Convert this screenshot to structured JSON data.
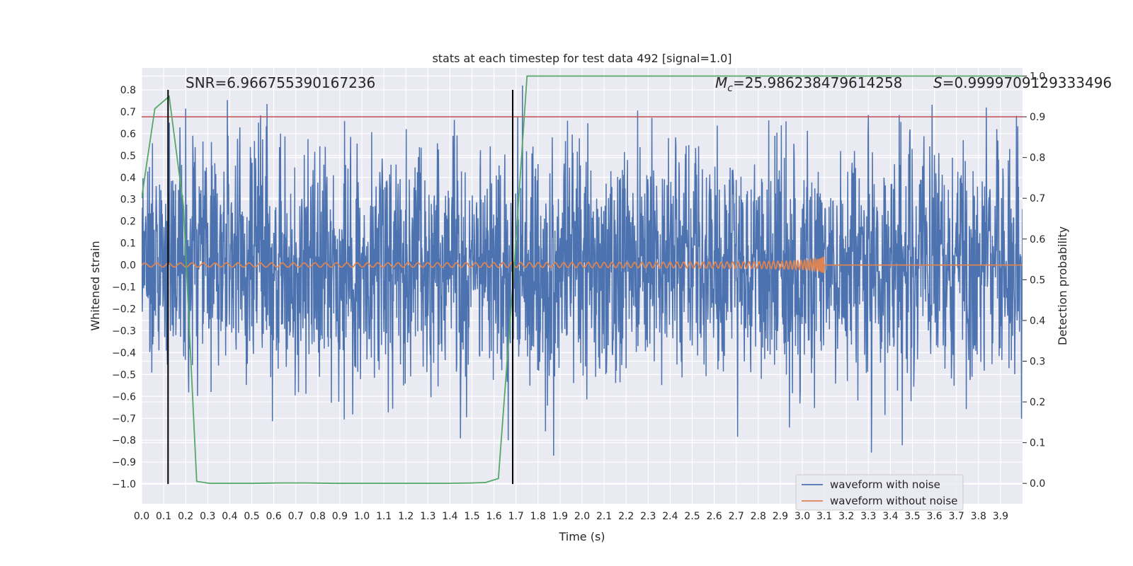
{
  "colors": {
    "background": "#ffffff",
    "plot_bg": "#eaeaf2",
    "grid": "#ffffff",
    "noisy": "#4c72b0",
    "clean": "#dd8452",
    "prob": "#55a868",
    "threshold": "#c44e52",
    "marker": "#000000"
  },
  "chart_data": {
    "type": "line",
    "title": "stats at each timestep for test data 492 [signal=1.0]",
    "xlabel": "Time (s)",
    "ylabel": "Whitened strain",
    "ylabel_right": "Detection probability",
    "xlim": [
      0.0,
      4.0
    ],
    "ylim": [
      -1.09,
      0.9
    ],
    "ylim_right": [
      -0.05,
      1.02
    ],
    "x_ticks": [
      "0.0",
      "0.1",
      "0.2",
      "0.3",
      "0.4",
      "0.5",
      "0.6",
      "0.7",
      "0.8",
      "0.9",
      "1.0",
      "1.1",
      "1.2",
      "1.3",
      "1.4",
      "1.5",
      "1.6",
      "1.7",
      "1.8",
      "1.9",
      "2.0",
      "2.1",
      "2.2",
      "2.3",
      "2.4",
      "2.5",
      "2.6",
      "2.7",
      "2.8",
      "2.9",
      "3.0",
      "3.1",
      "3.2",
      "3.3",
      "3.4",
      "3.5",
      "3.6",
      "3.7",
      "3.8",
      "3.9"
    ],
    "y_ticks": [
      "0.8",
      "0.7",
      "0.6",
      "0.5",
      "0.4",
      "0.3",
      "0.2",
      "0.1",
      "0.0",
      "−0.1",
      "−0.2",
      "−0.3",
      "−0.4",
      "−0.5",
      "−0.6",
      "−0.7",
      "−0.8",
      "−0.9",
      "−1.0"
    ],
    "y_tick_values": [
      0.8,
      0.7,
      0.6,
      0.5,
      0.4,
      0.3,
      0.2,
      0.1,
      0.0,
      -0.1,
      -0.2,
      -0.3,
      -0.4,
      -0.5,
      -0.6,
      -0.7,
      -0.8,
      -0.9,
      -1.0
    ],
    "y_right_ticks": [
      "1.0",
      "0.9",
      "0.8",
      "0.7",
      "0.6",
      "0.5",
      "0.4",
      "0.3",
      "0.2",
      "0.1",
      "0.0"
    ],
    "y_right_tick_values": [
      1.0,
      0.9,
      0.8,
      0.7,
      0.6,
      0.5,
      0.4,
      0.3,
      0.2,
      0.1,
      0.0
    ],
    "annotations": {
      "snr": "SNR=6.966755390167236",
      "mc_symbol": "M",
      "mc_sub": "c",
      "mc_value": "=25.986238479614258",
      "s_symbol": "S",
      "s_value": "=0.9999709129333496"
    },
    "markers_x": [
      0.12,
      1.685
    ],
    "threshold_right": 0.9,
    "noise_amplitude": 0.42,
    "series": [
      {
        "name": "waveform with noise",
        "axis": "left"
      },
      {
        "name": "waveform without noise",
        "axis": "left",
        "merger_time": 3.1
      },
      {
        "axis": "right",
        "x": [
          0.0,
          0.06,
          0.125,
          0.19,
          0.25,
          0.31,
          0.38,
          0.5,
          0.62,
          0.75,
          0.88,
          1.0,
          1.12,
          1.25,
          1.38,
          1.5,
          1.56,
          1.62,
          1.69,
          1.75,
          1.88,
          2.0,
          2.5,
          3.0,
          3.5,
          4.0
        ],
        "values": [
          0.7,
          0.92,
          0.95,
          0.68,
          0.005,
          0.0,
          0.0,
          0.0,
          0.001,
          0.001,
          0.0,
          0.0,
          0.0,
          0.0,
          0.0,
          0.001,
          0.002,
          0.012,
          0.52,
          1.0,
          1.0,
          1.0,
          1.0,
          1.0,
          1.0,
          1.0
        ]
      }
    ],
    "legend": {
      "position": "lower-right",
      "entries": [
        "waveform with noise",
        "waveform without noise"
      ]
    },
    "grid": true
  }
}
